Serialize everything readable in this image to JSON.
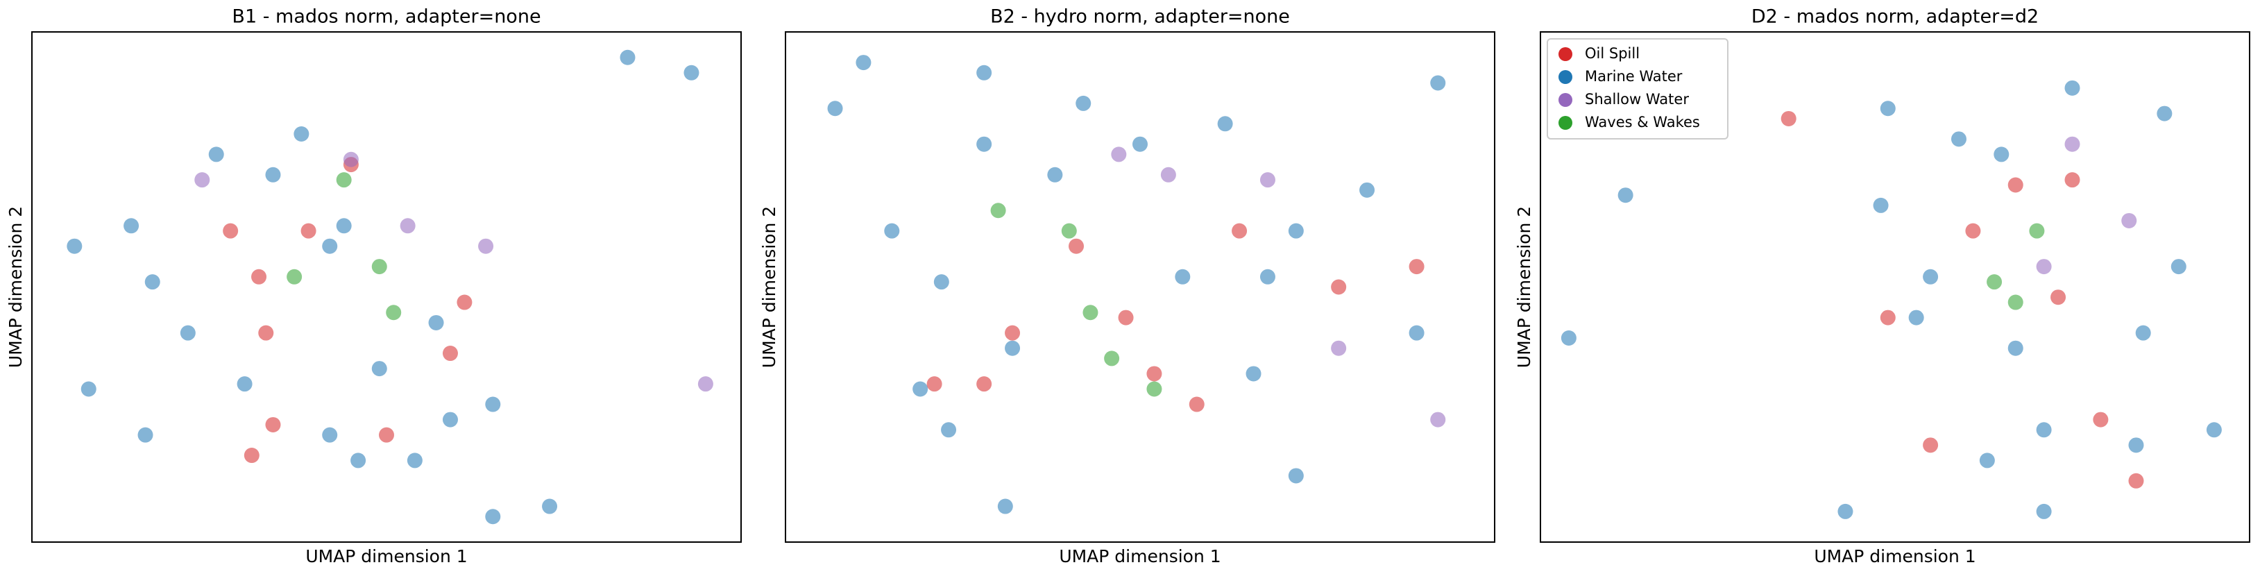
{
  "chart_data": [
    {
      "type": "scatter",
      "title": "B1 - mados norm, adapter=none",
      "x_label": "UMAP dimension 1",
      "y_label": "UMAP dimension 2",
      "xlim": [
        0,
        100
      ],
      "ylim": [
        0,
        100
      ],
      "series": [
        {
          "color": "#1f77b4",
          "x": [
            17,
            14,
            6,
            44,
            49,
            46,
            54,
            42,
            57,
            22,
            34,
            38,
            84,
            93,
            65,
            73,
            8,
            26,
            30,
            59,
            65,
            42,
            16
          ],
          "y": [
            51,
            62,
            58,
            62,
            34,
            16,
            16,
            21,
            43,
            41,
            72,
            80,
            95,
            92,
            5,
            7,
            30,
            76,
            31,
            24,
            27,
            58,
            21
          ]
        },
        {
          "color": "#d62728",
          "x": [
            32,
            33,
            45,
            59,
            34,
            31,
            61,
            50,
            39,
            28
          ],
          "y": [
            52,
            41,
            74,
            37,
            23,
            17,
            47,
            21,
            61,
            61
          ]
        },
        {
          "color": "#9467bd",
          "x": [
            64,
            53,
            45,
            95,
            24
          ],
          "y": [
            58,
            62,
            75,
            31,
            71
          ]
        },
        {
          "color": "#2ca02c",
          "x": [
            51,
            37,
            44,
            49
          ],
          "y": [
            45,
            52,
            71,
            54
          ]
        }
      ]
    },
    {
      "type": "scatter",
      "title": "B2 - hydro norm, adapter=none",
      "x_label": "UMAP dimension 1",
      "y_label": "UMAP dimension 2",
      "xlim": [
        0,
        100
      ],
      "ylim": [
        0,
        100
      ],
      "series": [
        {
          "color": "#1f77b4",
          "x": [
            28,
            23,
            31,
            72,
            82,
            62,
            15,
            22,
            32,
            56,
            68,
            11,
            28,
            42,
            92,
            7,
            72,
            66,
            19,
            89,
            38,
            50
          ],
          "y": [
            78,
            22,
            7,
            61,
            69,
            82,
            61,
            51,
            38,
            52,
            52,
            94,
            92,
            86,
            90,
            85,
            13,
            33,
            30,
            41,
            72,
            78
          ]
        },
        {
          "color": "#d62728",
          "x": [
            28,
            21,
            52,
            48,
            64,
            78,
            41,
            32,
            58,
            89
          ],
          "y": [
            31,
            31,
            33,
            44,
            61,
            50,
            58,
            41,
            27,
            54
          ]
        },
        {
          "color": "#9467bd",
          "x": [
            47,
            54,
            78,
            92,
            68
          ],
          "y": [
            76,
            72,
            38,
            24,
            71
          ]
        },
        {
          "color": "#2ca02c",
          "x": [
            43,
            30,
            40,
            52,
            46
          ],
          "y": [
            45,
            65,
            61,
            30,
            36
          ]
        }
      ]
    },
    {
      "type": "scatter",
      "title": "D2 - mados norm, adapter=d2",
      "x_label": "UMAP dimension 1",
      "y_label": "UMAP dimension 2",
      "xlim": [
        0,
        100
      ],
      "ylim": [
        0,
        100
      ],
      "legend": "upper left",
      "series": [
        {
          "name": "Oil Spill",
          "color": "#d62728",
          "x": [
            49,
            75,
            61,
            73,
            84,
            55,
            35,
            67,
            79
          ],
          "y": [
            44,
            71,
            61,
            48,
            12,
            19,
            83,
            70,
            24
          ]
        },
        {
          "name": "Marine Water",
          "color": "#1f77b4",
          "x": [
            49,
            65,
            71,
            84,
            63,
            55,
            85,
            48,
            75,
            88,
            12,
            4,
            67,
            53,
            90,
            43,
            71,
            95,
            59
          ],
          "y": [
            85,
            76,
            22,
            19,
            16,
            52,
            41,
            66,
            89,
            84,
            68,
            40,
            38,
            44,
            54,
            6,
            6,
            22,
            79
          ]
        },
        {
          "name": "Shallow Water",
          "color": "#9467bd",
          "x": [
            83,
            71,
            75
          ],
          "y": [
            63,
            54,
            78
          ]
        },
        {
          "name": "Waves & Wakes",
          "color": "#2ca02c",
          "x": [
            64,
            70,
            67
          ],
          "y": [
            51,
            61,
            47
          ]
        }
      ]
    }
  ]
}
